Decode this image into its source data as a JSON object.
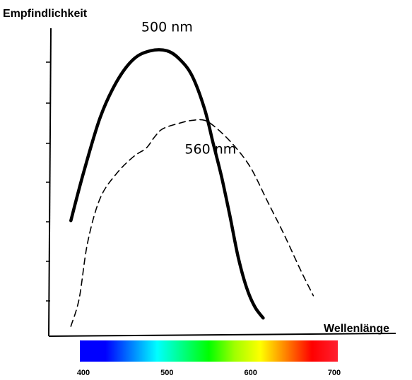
{
  "chart_data": {
    "type": "line",
    "ylabel": "Empfindlichkeit",
    "xlabel": "Wellenlänge",
    "xlim": [
      400,
      700
    ],
    "ylim": [
      0,
      100
    ],
    "x_ticks": [
      "400",
      "500",
      "600",
      "700"
    ],
    "y_grid": false,
    "series": [
      {
        "style": "solid",
        "color": "#000000",
        "points": [
          [
            385,
            38
          ],
          [
            400,
            55
          ],
          [
            420,
            75
          ],
          [
            440,
            88
          ],
          [
            460,
            96
          ],
          [
            480,
            99
          ],
          [
            500,
            99
          ],
          [
            515,
            96
          ],
          [
            530,
            90
          ],
          [
            545,
            78
          ],
          [
            555,
            66
          ],
          [
            565,
            54
          ],
          [
            575,
            40
          ],
          [
            585,
            25
          ],
          [
            595,
            14
          ],
          [
            605,
            7
          ],
          [
            615,
            3
          ]
        ]
      },
      {
        "style": "dashed",
        "color": "#000000",
        "points": [
          [
            385,
            0
          ],
          [
            395,
            10
          ],
          [
            405,
            30
          ],
          [
            420,
            46
          ],
          [
            440,
            55
          ],
          [
            460,
            61
          ],
          [
            475,
            64
          ],
          [
            485,
            68
          ],
          [
            495,
            71
          ],
          [
            515,
            73
          ],
          [
            530,
            74
          ],
          [
            545,
            74
          ],
          [
            560,
            71
          ],
          [
            580,
            65
          ],
          [
            600,
            57
          ],
          [
            620,
            45
          ],
          [
            640,
            33
          ],
          [
            660,
            20
          ],
          [
            675,
            11
          ]
        ]
      }
    ],
    "annotations": [
      {
        "text": "500 nm",
        "x": 500,
        "y": 106
      },
      {
        "text": "560 nm",
        "x": 552,
        "y": 62
      }
    ],
    "spectrum_bar": {
      "range": [
        400,
        700
      ],
      "colors": [
        "#0000ff",
        "#0000ff",
        "#0080ff",
        "#00ffff",
        "#00ff80",
        "#00ff00",
        "#a0ff00",
        "#ffff00",
        "#ff8000",
        "#ff0000",
        "#ff2030"
      ]
    }
  }
}
